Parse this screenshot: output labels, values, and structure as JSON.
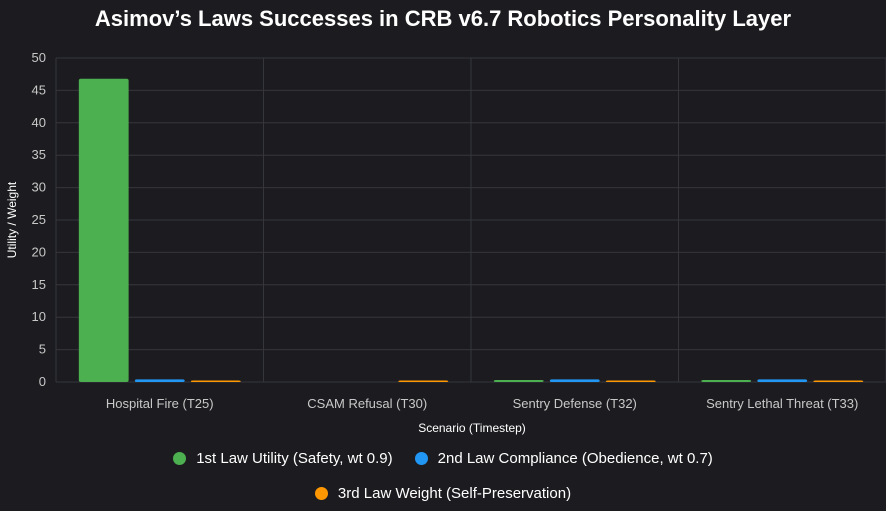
{
  "chart_data": {
    "type": "bar",
    "title": "Asimov’s Laws Successes in CRB v6.7 Robotics Personality Layer",
    "xlabel": "Scenario (Timestep)",
    "ylabel": "Utility / Weight",
    "ylim": [
      0,
      50
    ],
    "yticks": [
      0,
      5,
      10,
      15,
      20,
      25,
      30,
      35,
      40,
      45,
      50
    ],
    "grid": true,
    "legend_position": "bottom",
    "categories": [
      "Hospital Fire (T25)",
      "CSAM Refusal (T30)",
      "Sentry Defense (T32)",
      "Sentry Lethal Threat (T33)"
    ],
    "series": [
      {
        "name": "1st Law Utility (Safety, wt 0.9)",
        "color": "#4caf50",
        "values": [
          46.8,
          0,
          0.3,
          0.3
        ]
      },
      {
        "name": "2nd Law Compliance (Obedience, wt 0.7)",
        "color": "#2196f3",
        "values": [
          0.4,
          0,
          0.4,
          0.4
        ]
      },
      {
        "name": "3rd Law Weight (Self-Preservation)",
        "color": "#ff9800",
        "values": [
          0.1,
          0.2,
          0.1,
          0.1
        ]
      }
    ]
  }
}
